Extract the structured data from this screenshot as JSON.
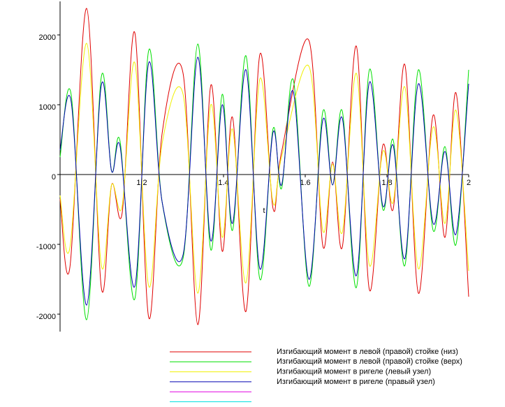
{
  "chart_data": {
    "type": "line",
    "x_label": "t",
    "xlim": [
      1.0,
      2.0
    ],
    "xticks": [
      1.2,
      1.4,
      1.6,
      1.8,
      2
    ],
    "ylim": [
      -2250,
      2480
    ],
    "yticks": [
      2000,
      1000,
      0,
      -1000,
      -2000
    ],
    "series": [
      {
        "name": "Изгибающий момент в левой (правой) стойке (низ)",
        "color": "#e00000",
        "x": [
          1.0,
          1.024,
          1.065,
          1.101,
          1.126,
          1.152,
          1.183,
          1.217,
          1.25,
          1.301,
          1.337,
          1.369,
          1.397,
          1.422,
          1.455,
          1.489,
          1.521,
          1.542,
          1.609,
          1.643,
          1.667,
          1.691,
          1.725,
          1.757,
          1.79,
          1.815,
          1.844,
          1.877,
          1.913,
          1.942,
          1.969,
          2.0
        ],
        "values": [
          -350,
          -1330,
          2380,
          -1620,
          -150,
          -550,
          2030,
          -2050,
          600,
          1450,
          -2150,
          1280,
          -1100,
          820,
          -1960,
          1720,
          -480,
          320,
          1920,
          -1020,
          180,
          -1030,
          1840,
          -1650,
          420,
          -500,
          1570,
          -1700,
          850,
          -900,
          1170,
          -1750
        ]
      },
      {
        "name": "Изгибающий момент в левой (правой) стойке (верх)",
        "color": "#00e000",
        "x": [
          1.0,
          1.027,
          1.065,
          1.101,
          1.126,
          1.147,
          1.183,
          1.217,
          1.25,
          1.301,
          1.337,
          1.369,
          1.397,
          1.422,
          1.455,
          1.489,
          1.521,
          1.542,
          1.571,
          1.609,
          1.643,
          1.667,
          1.691,
          1.725,
          1.757,
          1.79,
          1.815,
          1.844,
          1.877,
          1.913,
          1.942,
          1.969,
          2.0
        ],
        "values": [
          250,
          1150,
          -2080,
          1400,
          50,
          470,
          -1780,
          1780,
          -400,
          -1200,
          1870,
          -1080,
          1150,
          -800,
          1700,
          -1500,
          650,
          -200,
          1350,
          -1600,
          900,
          -150,
          900,
          -1620,
          1500,
          -500,
          500,
          -1300,
          1500,
          -800,
          400,
          -1000,
          1500
        ]
      },
      {
        "name": "Изгибающий момент в ригеле (левый узел)",
        "color": "#f0f000",
        "x": [
          1.0,
          1.024,
          1.065,
          1.101,
          1.126,
          1.152,
          1.183,
          1.217,
          1.25,
          1.301,
          1.337,
          1.369,
          1.397,
          1.422,
          1.455,
          1.489,
          1.521,
          1.542,
          1.609,
          1.643,
          1.667,
          1.691,
          1.725,
          1.757,
          1.79,
          1.815,
          1.844,
          1.877,
          1.913,
          1.942,
          1.969,
          2.0
        ],
        "values": [
          -300,
          -1050,
          1880,
          -1300,
          -150,
          -450,
          1600,
          -1600,
          450,
          1150,
          -1700,
          1000,
          -900,
          650,
          -1550,
          1370,
          -400,
          250,
          1550,
          -800,
          150,
          -820,
          1450,
          -1300,
          330,
          -400,
          1250,
          -1350,
          680,
          -700,
          920,
          -1380
        ]
      },
      {
        "name": "Изгибающий момент в ригеле (правый узел)",
        "color": "#0000b0",
        "x": [
          1.0,
          1.027,
          1.065,
          1.101,
          1.126,
          1.147,
          1.183,
          1.217,
          1.25,
          1.301,
          1.337,
          1.369,
          1.397,
          1.422,
          1.455,
          1.489,
          1.521,
          1.542,
          1.571,
          1.609,
          1.643,
          1.667,
          1.691,
          1.725,
          1.757,
          1.79,
          1.815,
          1.844,
          1.877,
          1.913,
          1.942,
          1.969,
          2.0
        ],
        "values": [
          350,
          1050,
          -1870,
          1280,
          50,
          400,
          -1600,
          1600,
          -400,
          -1150,
          1680,
          -950,
          1000,
          -700,
          1500,
          -1350,
          600,
          -150,
          1180,
          -1500,
          780,
          -150,
          800,
          -1450,
          1320,
          -450,
          420,
          -1200,
          1300,
          -700,
          330,
          -850,
          1300
        ]
      }
    ],
    "extra_legend_colors": [
      "#e000e0",
      "#00e0e0"
    ]
  }
}
